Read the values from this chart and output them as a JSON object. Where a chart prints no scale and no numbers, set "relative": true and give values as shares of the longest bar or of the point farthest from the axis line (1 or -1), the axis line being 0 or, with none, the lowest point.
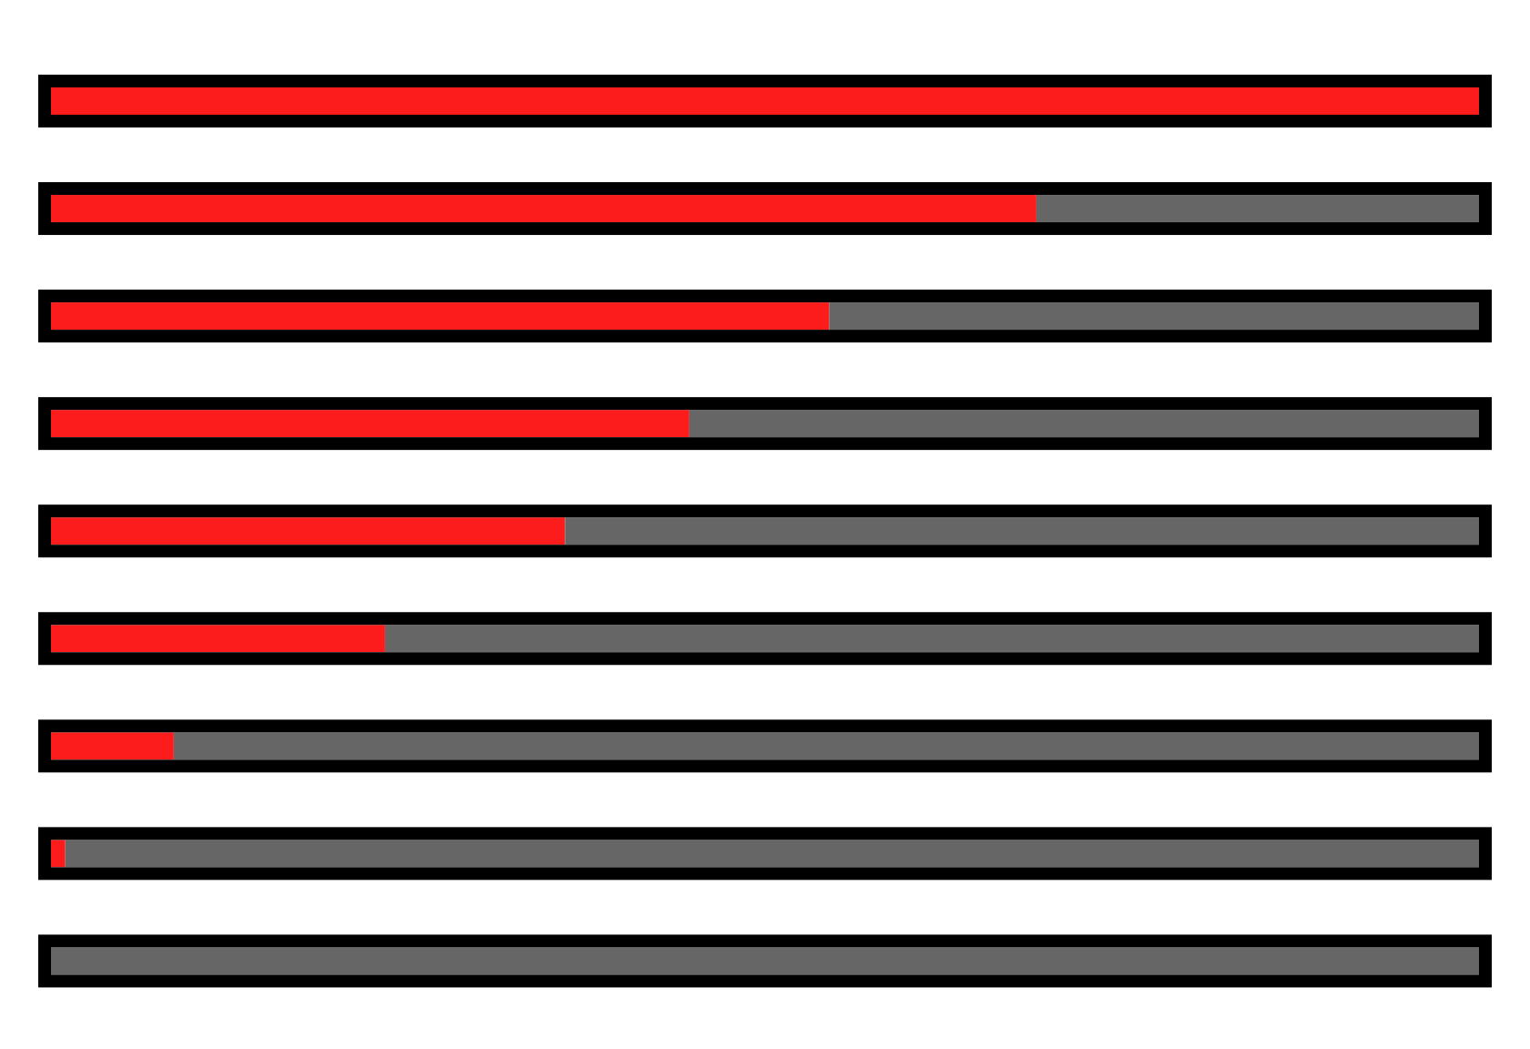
{
  "chart_data": {
    "type": "bar",
    "orientation": "horizontal",
    "stacked": true,
    "relative": true,
    "categories": [
      null,
      null,
      null,
      null,
      null,
      null,
      null,
      null,
      null
    ],
    "series": [
      {
        "color": "#fc1c1c",
        "values": [
          1,
          0.69,
          0.545,
          0.447,
          0.36,
          0.234,
          0.086,
          0.01,
          0
        ]
      },
      {
        "color": "#666666",
        "values": [
          0,
          0.31,
          0.455,
          0.553,
          0.64,
          0.766,
          0.914,
          0.99,
          1
        ]
      }
    ]
  }
}
